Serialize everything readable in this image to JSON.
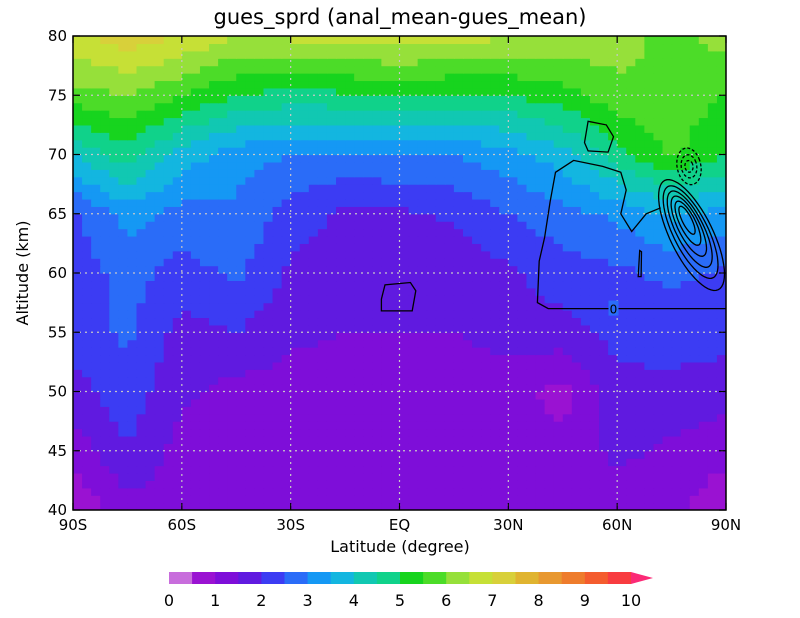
{
  "chart_data": {
    "type": "heatmap",
    "title": "gues_sprd (anal_mean-gues_mean)",
    "xlabel": "Latitude (degree)",
    "ylabel": "Altitude (km)",
    "xlim": [
      -90,
      90
    ],
    "ylim": [
      40,
      80
    ],
    "x_ticks": [
      -90,
      -60,
      -30,
      0,
      30,
      60,
      90
    ],
    "x_tick_labels": [
      "90S",
      "60S",
      "30S",
      "EQ",
      "30N",
      "60N",
      "90N"
    ],
    "y_ticks": [
      40,
      45,
      50,
      55,
      60,
      65,
      70,
      75,
      80
    ],
    "y_tick_labels": [
      "40",
      "45",
      "50",
      "55",
      "60",
      "65",
      "70",
      "75",
      "80"
    ],
    "grid": true,
    "latitudes": [
      -90,
      -75,
      -60,
      -45,
      -30,
      -15,
      0,
      15,
      30,
      45,
      60,
      75,
      90
    ],
    "altitudes": [
      40,
      45,
      50,
      55,
      60,
      65,
      70,
      75,
      80
    ],
    "values": [
      [
        0.5,
        1.3,
        1.2,
        1.2,
        1.1,
        1.1,
        1.2,
        1.1,
        1.2,
        1.2,
        1.3,
        1.2,
        0.5
      ],
      [
        1.2,
        2.0,
        1.3,
        1.2,
        1.2,
        1.2,
        1.4,
        1.2,
        1.2,
        1.2,
        1.6,
        1.4,
        1.2
      ],
      [
        1.8,
        2.3,
        1.6,
        1.3,
        1.3,
        1.2,
        1.3,
        1.2,
        1.2,
        0.8,
        1.8,
        1.8,
        1.7
      ],
      [
        2.2,
        2.6,
        1.8,
        2.0,
        1.6,
        1.5,
        1.5,
        1.5,
        1.7,
        1.8,
        2.2,
        2.3,
        2.2
      ],
      [
        2.2,
        2.7,
        2.3,
        2.6,
        1.9,
        1.6,
        1.5,
        1.6,
        1.9,
        2.3,
        2.4,
        2.6,
        2.4
      ],
      [
        2.4,
        3.2,
        2.8,
        2.9,
        2.3,
        1.9,
        1.9,
        2.1,
        2.5,
        2.8,
        3.1,
        3.6,
        3.3
      ],
      [
        4.0,
        4.8,
        3.8,
        3.2,
        3.0,
        2.9,
        3.0,
        3.0,
        3.3,
        3.8,
        4.8,
        5.6,
        5.0
      ],
      [
        5.8,
        6.0,
        5.5,
        5.0,
        4.8,
        4.9,
        5.0,
        4.9,
        5.0,
        5.3,
        5.8,
        5.8,
        5.5
      ],
      [
        6.9,
        7.3,
        7.0,
        6.5,
        6.6,
        6.8,
        6.8,
        6.8,
        6.5,
        6.4,
        6.3,
        5.8,
        6.2
      ]
    ],
    "colorbar": {
      "levels": [
        0,
        0.5,
        1,
        1.5,
        2,
        2.5,
        3,
        3.5,
        4,
        4.5,
        5,
        5.5,
        6,
        6.5,
        7,
        7.5,
        8,
        8.5,
        9,
        9.5,
        10
      ],
      "colors": [
        "#c86ddc",
        "#9a12d2",
        "#7e0ed9",
        "#601ae0",
        "#3c3cf3",
        "#2a6cf8",
        "#1598f4",
        "#13b6e0",
        "#11c8b2",
        "#10d28a",
        "#17d41e",
        "#4cdc28",
        "#96e03a",
        "#c6e036",
        "#d8d03a",
        "#e0b430",
        "#e89830",
        "#ee7c2c",
        "#f45c2e",
        "#f83c40",
        "#fb2a76"
      ],
      "tick_values": [
        0,
        1,
        2,
        3,
        4,
        5,
        6,
        7,
        8,
        9,
        10
      ],
      "tick_labels": [
        "0",
        "1",
        "2",
        "3",
        "4",
        "5",
        "6",
        "7",
        "8",
        "9",
        "10"
      ]
    },
    "contours": {
      "color": "#000000",
      "zero_label": "0"
    }
  }
}
